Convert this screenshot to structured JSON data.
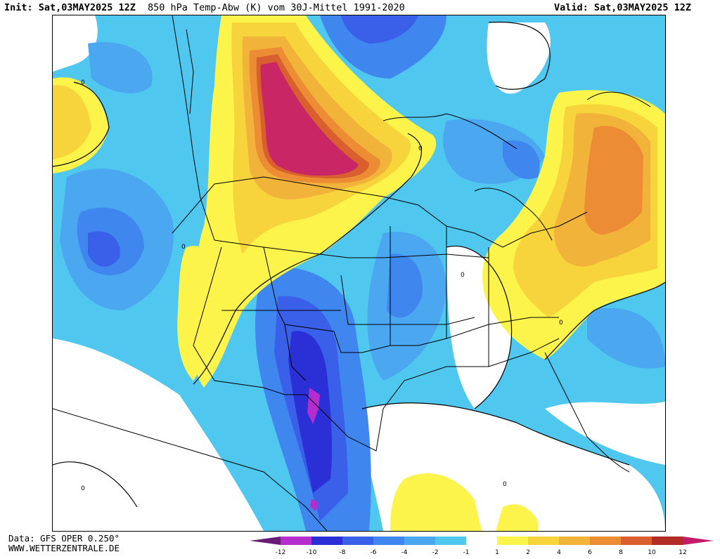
{
  "header": {
    "init": "Init: Sat,03MAY2025 12Z",
    "title": "850 hPa Temp-Abw (K) vom 30J-Mittel 1991-2020",
    "valid": "Valid: Sat,03MAY2025 12Z"
  },
  "footer": {
    "data_source": "Data: GFS OPER 0.250°",
    "website": "WWW.WETTERZENTRALE.DE"
  },
  "map": {
    "region": "North America",
    "contour_label": "0"
  },
  "legend": {
    "ticks": [
      "-12",
      "-10",
      "-8",
      "-6",
      "-4",
      "-2",
      "-1",
      "1",
      "2",
      "4",
      "6",
      "8",
      "10",
      "12"
    ],
    "colors": {
      "below_-12": "#6a1b78",
      "-12_-10": "#b52dcc",
      "-10_-8": "#2b2fd6",
      "-8_-6": "#3a5fe8",
      "-6_-4": "#3f86ee",
      "-4_-2": "#4aa7f0",
      "-2_-1": "#4fc7ee",
      "-1_1": "#ffffff",
      "1_2": "#fcf44a",
      "2_4": "#f7d43c",
      "4_6": "#f2b33a",
      "6_8": "#ec8c35",
      "8_10": "#d95f2e",
      "10_12": "#b22b26",
      "above_12": "#c41c6d"
    }
  }
}
